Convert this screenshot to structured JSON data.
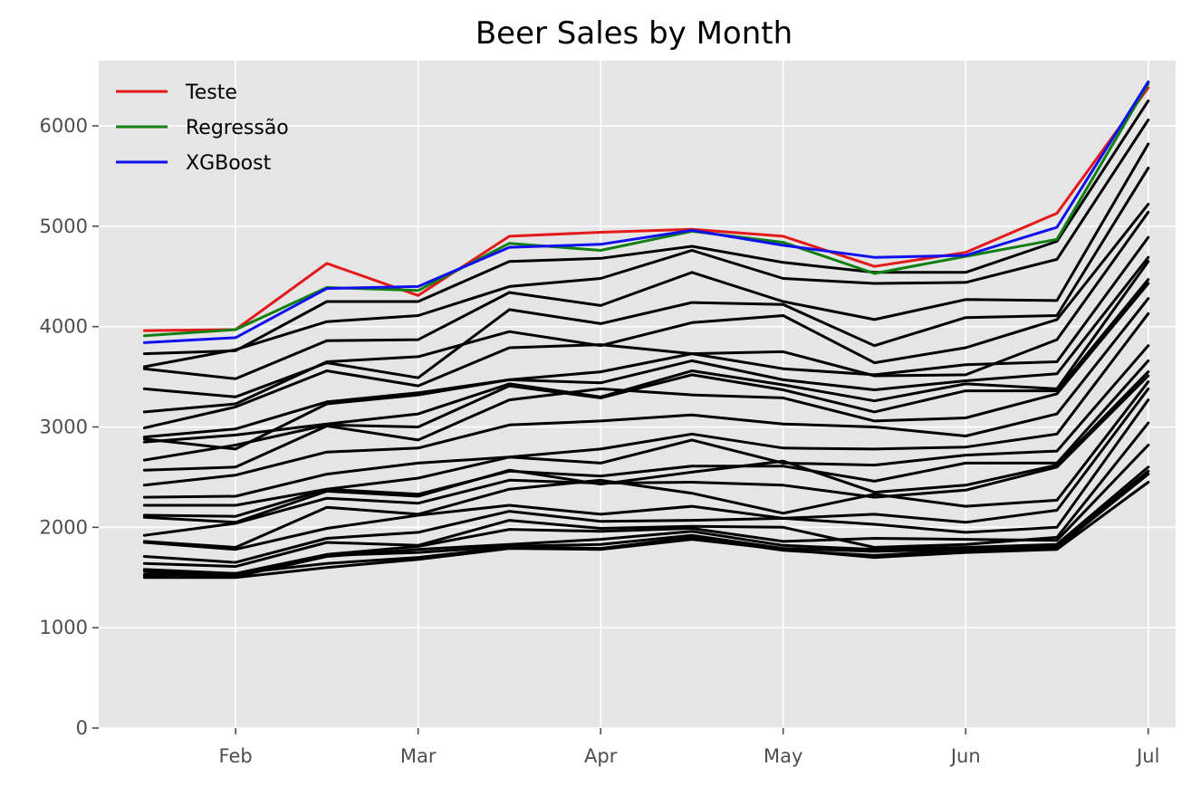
{
  "chart_data": {
    "type": "line",
    "title": "Beer Sales by Month",
    "xlabel": "",
    "ylabel": "",
    "x": [
      0,
      1,
      2,
      3,
      4,
      5,
      6,
      7,
      8,
      9,
      10,
      11
    ],
    "x_ticks": [
      {
        "x": 1,
        "label": "Feb"
      },
      {
        "x": 3,
        "label": "Mar"
      },
      {
        "x": 5,
        "label": "Apr"
      },
      {
        "x": 7,
        "label": "May"
      },
      {
        "x": 9,
        "label": "Jun"
      },
      {
        "x": 11,
        "label": "Jul"
      }
    ],
    "y_ticks": [
      0,
      1000,
      2000,
      3000,
      4000,
      5000,
      6000
    ],
    "xlim": [
      -0.5,
      11.3
    ],
    "ylim": [
      0,
      6650
    ],
    "grid": true,
    "legend_position": "top-left",
    "legend": [
      {
        "name": "Teste",
        "color": "#e41a1a"
      },
      {
        "name": "Regressão",
        "color": "#118011"
      },
      {
        "name": "XGBoost",
        "color": "#1010ee"
      }
    ],
    "colors": {
      "background": "#e5e5e5",
      "other_series": "#000000"
    },
    "series": [
      {
        "name": "Teste",
        "color": "#e41a1a",
        "values": [
          3960,
          3970,
          4630,
          4310,
          4900,
          4940,
          4970,
          4900,
          4600,
          4740,
          5130,
          6380
        ]
      },
      {
        "name": "Regressão",
        "color": "#118011",
        "values": [
          3910,
          3970,
          4390,
          4360,
          4830,
          4760,
          4950,
          4840,
          4530,
          4700,
          4870,
          6420
        ]
      },
      {
        "name": "XGBoost",
        "color": "#1010ee",
        "values": [
          3840,
          3890,
          4380,
          4400,
          4790,
          4820,
          4960,
          4810,
          4690,
          4710,
          4990,
          6440
        ]
      }
    ],
    "other_series": [
      [
        3730,
        3760,
        4250,
        4250,
        4650,
        4680,
        4800,
        4640,
        4540,
        4540,
        4850,
        6250
      ],
      [
        3600,
        3770,
        4050,
        4110,
        4400,
        4480,
        4760,
        4480,
        4430,
        4440,
        4670,
        6060
      ],
      [
        3580,
        3480,
        3860,
        3870,
        4340,
        4210,
        4540,
        4250,
        4070,
        4270,
        4260,
        5820
      ],
      [
        3380,
        3300,
        3640,
        3490,
        4170,
        4030,
        4240,
        4220,
        3810,
        4090,
        4110,
        5580
      ],
      [
        3150,
        3230,
        3650,
        3700,
        3950,
        3810,
        4040,
        4110,
        3640,
        3790,
        4070,
        5220
      ],
      [
        2990,
        3200,
        3560,
        3410,
        3790,
        3820,
        3730,
        3750,
        3510,
        3520,
        3870,
        5140
      ],
      [
        2900,
        2980,
        3250,
        3340,
        3470,
        3550,
        3730,
        3580,
        3520,
        3620,
        3650,
        4890
      ],
      [
        2880,
        2780,
        3230,
        3320,
        3470,
        3440,
        3660,
        3470,
        3370,
        3460,
        3530,
        4690
      ],
      [
        2850,
        2920,
        3030,
        3130,
        3430,
        3300,
        3560,
        3420,
        3260,
        3430,
        3380,
        4650
      ],
      [
        2670,
        2820,
        3020,
        3000,
        3410,
        3290,
        3520,
        3370,
        3150,
        3360,
        3360,
        4470
      ],
      [
        2570,
        2600,
        3010,
        2870,
        3270,
        3380,
        3320,
        3290,
        3060,
        3090,
        3330,
        4430
      ],
      [
        2420,
        2520,
        2750,
        2790,
        3020,
        3060,
        3120,
        3030,
        3000,
        2910,
        3130,
        4280
      ],
      [
        2300,
        2310,
        2530,
        2640,
        2700,
        2780,
        2930,
        2790,
        2780,
        2800,
        2930,
        4130
      ],
      [
        2220,
        2220,
        2380,
        2490,
        2700,
        2640,
        2870,
        2640,
        2620,
        2720,
        2760,
        3810
      ],
      [
        2120,
        2110,
        2380,
        2330,
        2560,
        2510,
        2610,
        2610,
        2460,
        2640,
        2640,
        3660
      ],
      [
        2100,
        2050,
        2360,
        2310,
        2570,
        2430,
        2550,
        2660,
        2350,
        2420,
        2620,
        3550
      ],
      [
        1920,
        2040,
        2290,
        2240,
        2470,
        2440,
        2450,
        2420,
        2300,
        2370,
        2600,
        3510
      ],
      [
        1860,
        1800,
        2200,
        2130,
        2380,
        2470,
        2340,
        2140,
        2330,
        2210,
        2270,
        3450
      ],
      [
        1850,
        1780,
        1990,
        2120,
        2220,
        2130,
        2210,
        2090,
        2130,
        2050,
        2170,
        3380
      ],
      [
        1710,
        1650,
        1890,
        1950,
        2160,
        2060,
        2070,
        2090,
        2030,
        1950,
        2000,
        3270
      ],
      [
        1640,
        1610,
        1850,
        1820,
        2070,
        1990,
        2010,
        2000,
        1800,
        1830,
        1900,
        3040
      ],
      [
        1580,
        1540,
        1730,
        1810,
        1980,
        1960,
        1990,
        1860,
        1890,
        1880,
        1870,
        2820
      ],
      [
        1560,
        1510,
        1710,
        1780,
        1830,
        1880,
        1960,
        1820,
        1780,
        1800,
        1830,
        2600
      ],
      [
        1530,
        1520,
        1720,
        1750,
        1810,
        1830,
        1920,
        1790,
        1760,
        1780,
        1810,
        2560
      ],
      [
        1520,
        1540,
        1640,
        1700,
        1800,
        1790,
        1900,
        1770,
        1720,
        1770,
        1800,
        2530
      ],
      [
        1500,
        1500,
        1600,
        1680,
        1790,
        1780,
        1880,
        1780,
        1700,
        1750,
        1780,
        2450
      ]
    ]
  }
}
